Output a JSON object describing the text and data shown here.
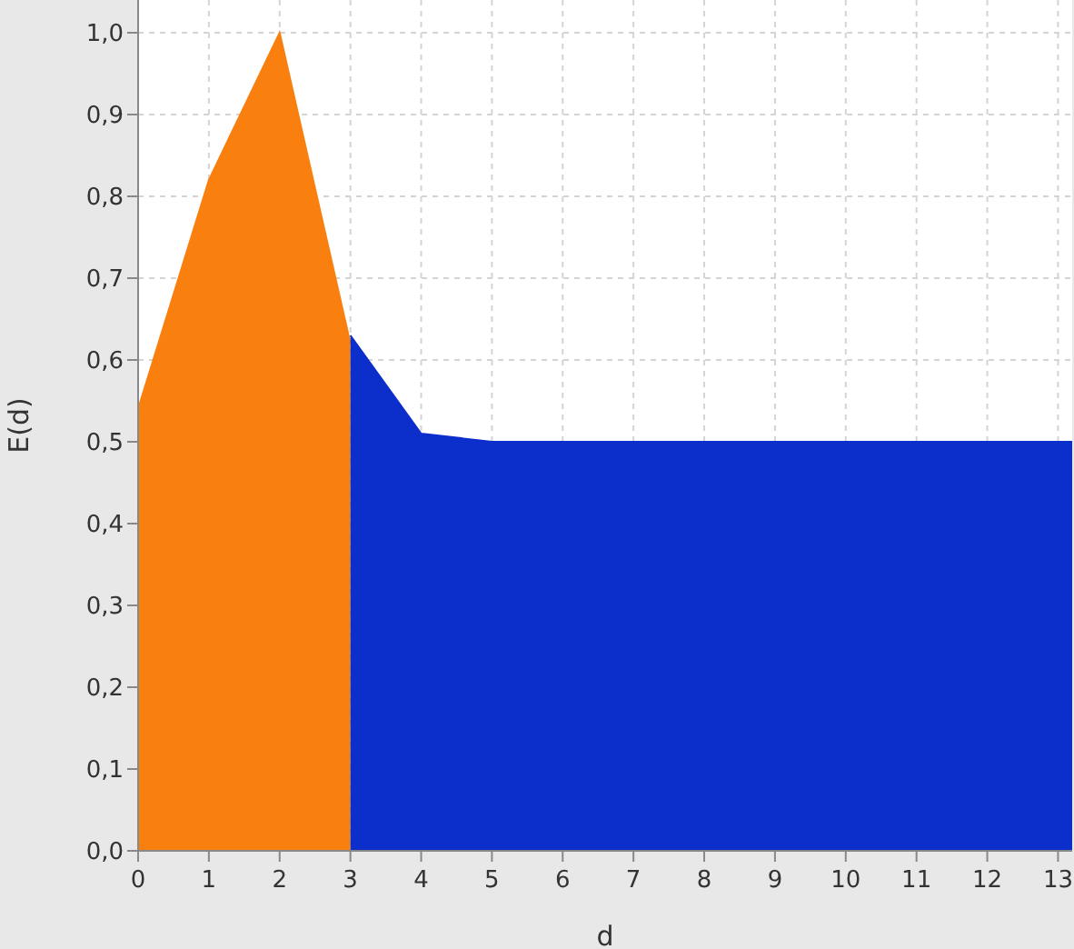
{
  "chart_data": {
    "type": "area",
    "xlabel": "d",
    "ylabel": "E(d)",
    "xlim": [
      0,
      13.2
    ],
    "xticks": [
      0,
      1,
      2,
      3,
      4,
      5,
      6,
      7,
      8,
      9,
      10,
      11,
      12,
      13
    ],
    "ylim": [
      0,
      1.04
    ],
    "yticks": [
      {
        "value": 0,
        "label": "0,0"
      },
      {
        "value": 0.1,
        "label": "0,1"
      },
      {
        "value": 0.2,
        "label": "0,2"
      },
      {
        "value": 0.3,
        "label": "0,3"
      },
      {
        "value": 0.4,
        "label": "0,4"
      },
      {
        "value": 0.5,
        "label": "0,5"
      },
      {
        "value": 0.6,
        "label": "0,6"
      },
      {
        "value": 0.7,
        "label": "0,7"
      },
      {
        "value": 0.8,
        "label": "0,8"
      },
      {
        "value": 0.9,
        "label": "0,9"
      },
      {
        "value": 1,
        "label": "1,0"
      }
    ],
    "grid": true,
    "line_style": "dashed",
    "series": [
      {
        "color": "#f97f0f",
        "x": [
          0,
          1,
          2,
          3
        ],
        "values": [
          0.54,
          0.82,
          1.0,
          0.62
        ]
      },
      {
        "color": "#0c2fcc",
        "x": [
          3,
          4,
          5,
          6,
          7,
          8,
          9,
          10,
          11,
          12,
          13,
          13.2
        ],
        "values": [
          0.63,
          0.51,
          0.5,
          0.5,
          0.5,
          0.5,
          0.5,
          0.5,
          0.5,
          0.5,
          0.5,
          0.5
        ]
      }
    ]
  }
}
